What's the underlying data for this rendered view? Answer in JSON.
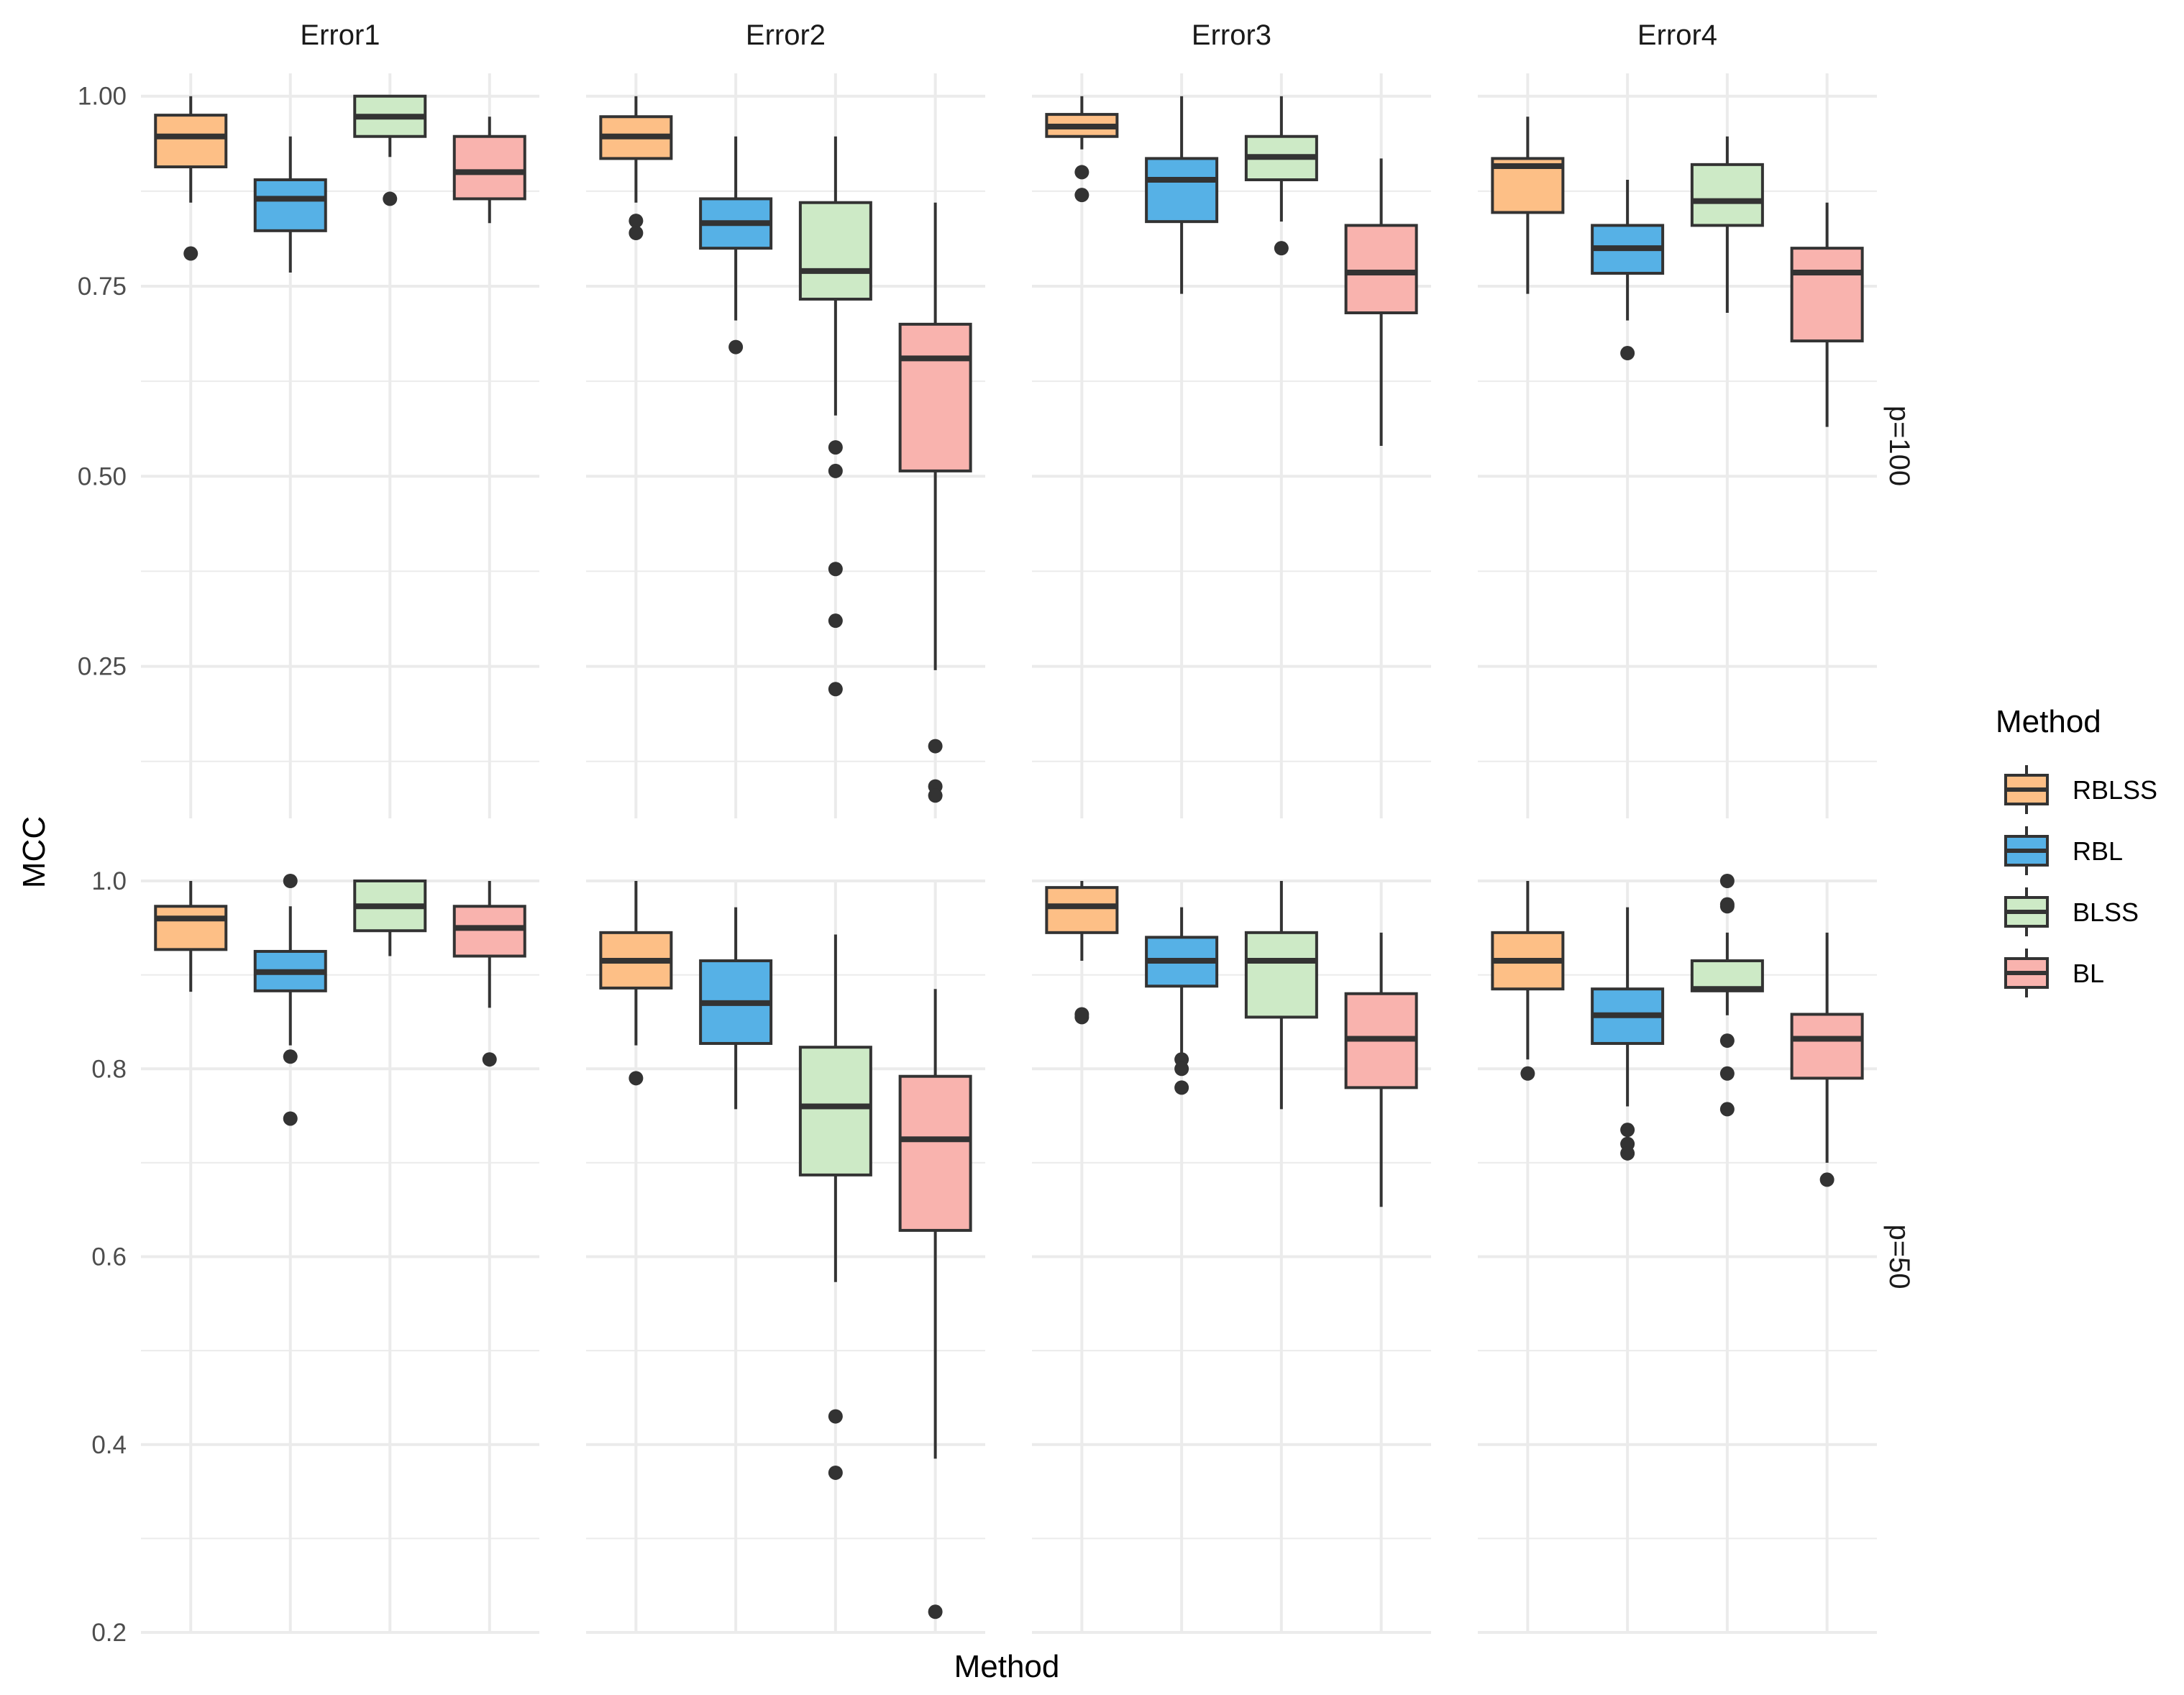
{
  "chart_data": {
    "type": "boxplot",
    "xlabel": "Method",
    "ylabel": "MCC",
    "facet_columns": [
      "Error1",
      "Error2",
      "Error3",
      "Error4"
    ],
    "facet_rows": [
      "p=100",
      "p=50"
    ],
    "legend": {
      "title": "Method",
      "placement": "right",
      "entries": [
        {
          "name": "RBLSS",
          "color": "#fdbf86"
        },
        {
          "name": "RBL",
          "color": "#56b1e6"
        },
        {
          "name": "BLSS",
          "color": "#cdeac6"
        },
        {
          "name": "BL",
          "color": "#f9b3ae"
        }
      ]
    },
    "colors": {
      "box_stroke": "#333333",
      "grid": "#ebebeb",
      "background": "#ffffff"
    },
    "grid": true,
    "rows": [
      {
        "label": "p=100",
        "ylim": [
          0.05,
          1.03
        ],
        "yticks": [
          0.25,
          0.5,
          0.75,
          1.0
        ],
        "ytick_labels": [
          "0.25",
          "0.50",
          "0.75",
          "1.00"
        ],
        "panels": [
          {
            "facet": "Error1",
            "boxes": [
              {
                "method": "RBLSS",
                "min": 0.86,
                "q1": 0.907,
                "median": 0.947,
                "q3": 0.975,
                "max": 1.0,
                "outliers": [
                  0.793
                ]
              },
              {
                "method": "RBL",
                "min": 0.768,
                "q1": 0.823,
                "median": 0.865,
                "q3": 0.89,
                "max": 0.947,
                "outliers": []
              },
              {
                "method": "BLSS",
                "min": 0.92,
                "q1": 0.947,
                "median": 0.973,
                "q3": 1.0,
                "max": 1.0,
                "outliers": [
                  0.865
                ]
              },
              {
                "method": "BL",
                "min": 0.833,
                "q1": 0.865,
                "median": 0.9,
                "q3": 0.947,
                "max": 0.973,
                "outliers": []
              }
            ]
          },
          {
            "facet": "Error2",
            "boxes": [
              {
                "method": "RBLSS",
                "min": 0.86,
                "q1": 0.918,
                "median": 0.947,
                "q3": 0.973,
                "max": 1.0,
                "outliers": [
                  0.836,
                  0.82
                ]
              },
              {
                "method": "RBL",
                "min": 0.705,
                "q1": 0.8,
                "median": 0.833,
                "q3": 0.865,
                "max": 0.947,
                "outliers": [
                  0.67
                ]
              },
              {
                "method": "BLSS",
                "min": 0.58,
                "q1": 0.733,
                "median": 0.77,
                "q3": 0.86,
                "max": 0.947,
                "outliers": [
                  0.538,
                  0.507,
                  0.378,
                  0.31,
                  0.22
                ]
              },
              {
                "method": "BL",
                "min": 0.245,
                "q1": 0.507,
                "median": 0.655,
                "q3": 0.7,
                "max": 0.86,
                "outliers": [
                  0.145,
                  0.092,
                  0.08
                ]
              }
            ]
          },
          {
            "facet": "Error3",
            "boxes": [
              {
                "method": "RBLSS",
                "min": 0.93,
                "q1": 0.947,
                "median": 0.96,
                "q3": 0.976,
                "max": 1.0,
                "outliers": [
                  0.9,
                  0.87
                ]
              },
              {
                "method": "RBL",
                "min": 0.74,
                "q1": 0.835,
                "median": 0.89,
                "q3": 0.918,
                "max": 1.0,
                "outliers": []
              },
              {
                "method": "BLSS",
                "min": 0.835,
                "q1": 0.89,
                "median": 0.92,
                "q3": 0.947,
                "max": 1.0,
                "outliers": [
                  0.8
                ]
              },
              {
                "method": "BL",
                "min": 0.54,
                "q1": 0.715,
                "median": 0.768,
                "q3": 0.83,
                "max": 0.918,
                "outliers": []
              }
            ]
          },
          {
            "facet": "Error4",
            "boxes": [
              {
                "method": "RBLSS",
                "min": 0.74,
                "q1": 0.847,
                "median": 0.908,
                "q3": 0.918,
                "max": 0.973,
                "outliers": []
              },
              {
                "method": "RBL",
                "min": 0.705,
                "q1": 0.767,
                "median": 0.8,
                "q3": 0.83,
                "max": 0.89,
                "outliers": [
                  0.662
                ]
              },
              {
                "method": "BLSS",
                "min": 0.715,
                "q1": 0.83,
                "median": 0.862,
                "q3": 0.91,
                "max": 0.947,
                "outliers": []
              },
              {
                "method": "BL",
                "min": 0.565,
                "q1": 0.678,
                "median": 0.768,
                "q3": 0.8,
                "max": 0.86,
                "outliers": []
              }
            ]
          }
        ]
      },
      {
        "label": "p=50",
        "ylim": [
          0.2,
          1.0
        ],
        "yticks": [
          0.2,
          0.4,
          0.6,
          0.8,
          1.0
        ],
        "ytick_labels": [
          "0.2",
          "0.4",
          "0.6",
          "0.8",
          "1.0"
        ],
        "panels": [
          {
            "facet": "Error1",
            "boxes": [
              {
                "method": "RBLSS",
                "min": 0.882,
                "q1": 0.927,
                "median": 0.96,
                "q3": 0.973,
                "max": 1.0,
                "outliers": []
              },
              {
                "method": "RBL",
                "min": 0.825,
                "q1": 0.883,
                "median": 0.903,
                "q3": 0.925,
                "max": 0.973,
                "outliers": [
                  1.0,
                  0.813,
                  0.747
                ]
              },
              {
                "method": "BLSS",
                "min": 0.92,
                "q1": 0.947,
                "median": 0.973,
                "q3": 1.0,
                "max": 1.0,
                "outliers": []
              },
              {
                "method": "BL",
                "min": 0.865,
                "q1": 0.92,
                "median": 0.95,
                "q3": 0.973,
                "max": 1.0,
                "outliers": [
                  0.81
                ]
              }
            ]
          },
          {
            "facet": "Error2",
            "boxes": [
              {
                "method": "RBLSS",
                "min": 0.825,
                "q1": 0.886,
                "median": 0.915,
                "q3": 0.945,
                "max": 1.0,
                "outliers": [
                  0.79
                ]
              },
              {
                "method": "RBL",
                "min": 0.757,
                "q1": 0.827,
                "median": 0.87,
                "q3": 0.915,
                "max": 0.972,
                "outliers": []
              },
              {
                "method": "BLSS",
                "min": 0.573,
                "q1": 0.687,
                "median": 0.76,
                "q3": 0.823,
                "max": 0.943,
                "outliers": [
                  0.43,
                  0.37
                ]
              },
              {
                "method": "BL",
                "min": 0.385,
                "q1": 0.628,
                "median": 0.725,
                "q3": 0.792,
                "max": 0.885,
                "outliers": [
                  0.222
                ]
              }
            ]
          },
          {
            "facet": "Error3",
            "boxes": [
              {
                "method": "RBLSS",
                "min": 0.915,
                "q1": 0.945,
                "median": 0.973,
                "q3": 0.993,
                "max": 1.0,
                "outliers": [
                  0.858,
                  0.855
                ]
              },
              {
                "method": "RBL",
                "min": 0.812,
                "q1": 0.888,
                "median": 0.915,
                "q3": 0.94,
                "max": 0.972,
                "outliers": [
                  0.81,
                  0.8,
                  0.78
                ]
              },
              {
                "method": "BLSS",
                "min": 0.757,
                "q1": 0.855,
                "median": 0.915,
                "q3": 0.945,
                "max": 1.0,
                "outliers": []
              },
              {
                "method": "BL",
                "min": 0.653,
                "q1": 0.78,
                "median": 0.832,
                "q3": 0.88,
                "max": 0.945,
                "outliers": []
              }
            ]
          },
          {
            "facet": "Error4",
            "boxes": [
              {
                "method": "RBLSS",
                "min": 0.81,
                "q1": 0.885,
                "median": 0.915,
                "q3": 0.945,
                "max": 1.0,
                "outliers": [
                  0.795
                ]
              },
              {
                "method": "RBL",
                "min": 0.76,
                "q1": 0.827,
                "median": 0.857,
                "q3": 0.885,
                "max": 0.972,
                "outliers": [
                  0.735,
                  0.72,
                  0.71
                ]
              },
              {
                "method": "BLSS",
                "min": 0.857,
                "q1": 0.883,
                "median": 0.885,
                "q3": 0.915,
                "max": 0.945,
                "outliers": [
                  1.0,
                  0.975,
                  0.973,
                  0.83,
                  0.795,
                  0.757
                ]
              },
              {
                "method": "BL",
                "min": 0.7,
                "q1": 0.79,
                "median": 0.832,
                "q3": 0.858,
                "max": 0.945,
                "outliers": [
                  0.682
                ]
              }
            ]
          }
        ]
      }
    ]
  }
}
